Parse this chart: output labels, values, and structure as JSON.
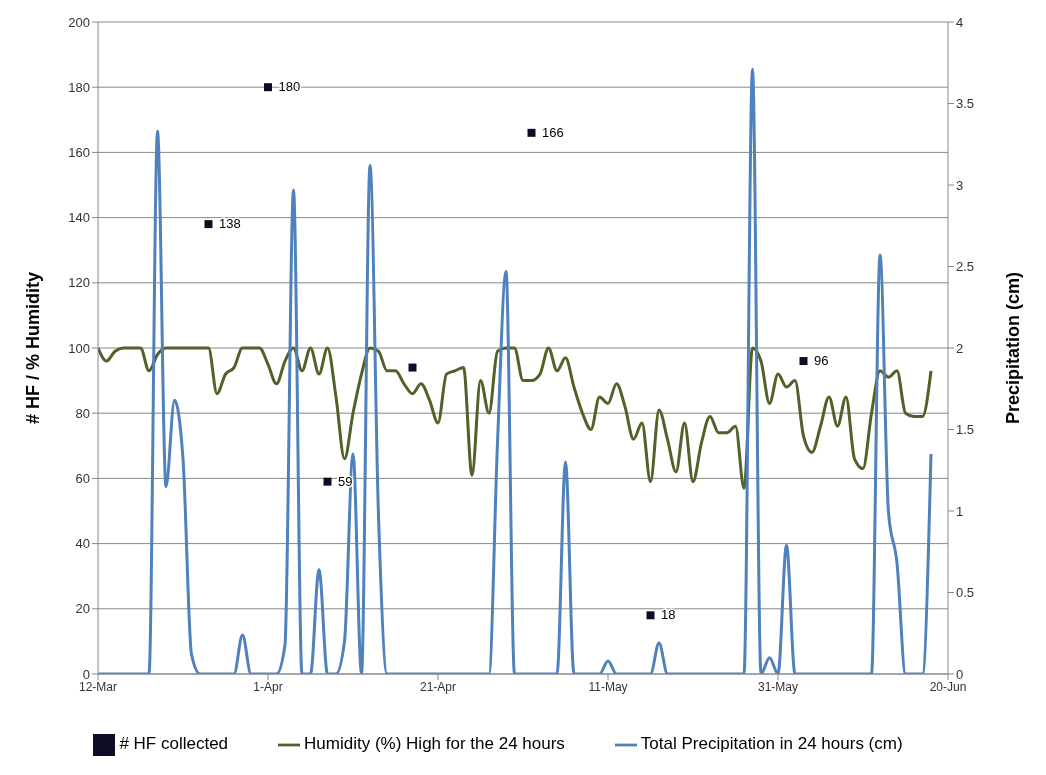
{
  "chart_data": {
    "type": "line",
    "x": [
      "--03-12",
      "--03-13",
      "--03-14",
      "--03-15",
      "--03-16",
      "--03-17",
      "--03-18",
      "--03-19",
      "--03-20",
      "--03-21",
      "--03-22",
      "--03-23",
      "--03-24",
      "--03-25",
      "--03-26",
      "--03-27",
      "--03-28",
      "--03-29",
      "--03-30",
      "--03-31",
      "--04-01",
      "--04-02",
      "--04-03",
      "--04-04",
      "--04-05",
      "--04-06",
      "--04-07",
      "--04-08",
      "--04-09",
      "--04-10",
      "--04-11",
      "--04-12",
      "--04-13",
      "--04-14",
      "--04-15",
      "--04-16",
      "--04-17",
      "--04-18",
      "--04-19",
      "--04-20",
      "--04-21",
      "--04-22",
      "--04-23",
      "--04-24",
      "--04-25",
      "--04-26",
      "--04-27",
      "--04-28",
      "--04-29",
      "--04-30",
      "--05-01",
      "--05-02",
      "--05-03",
      "--05-04",
      "--05-05",
      "--05-06",
      "--05-07",
      "--05-08",
      "--05-09",
      "--05-10",
      "--05-11",
      "--05-12",
      "--05-13",
      "--05-14",
      "--05-15",
      "--05-16",
      "--05-17",
      "--05-18",
      "--05-19",
      "--05-20",
      "--05-21",
      "--05-22",
      "--05-23",
      "--05-24",
      "--05-25",
      "--05-26",
      "--05-27",
      "--05-28",
      "--05-29",
      "--05-30",
      "--05-31",
      "--06-01",
      "--06-02",
      "--06-03",
      "--06-04",
      "--06-05",
      "--06-06",
      "--06-07",
      "--06-08",
      "--06-09",
      "--06-10",
      "--06-11",
      "--06-12",
      "--06-13",
      "--06-14",
      "--06-15",
      "--06-16",
      "--06-17",
      "--06-18"
    ],
    "series": [
      {
        "name": "# HF collected",
        "type": "scatter",
        "marker": "square",
        "color": "#0d0d26",
        "x": [
          "--03-25",
          "--04-01",
          "--04-08",
          "--04-18",
          "--05-02",
          "--05-16",
          "--06-03"
        ],
        "values": [
          138,
          180,
          59,
          94,
          166,
          18,
          96
        ],
        "value_labels": [
          "138",
          "180",
          "59",
          null,
          "166",
          "18",
          "96"
        ]
      },
      {
        "name": "Humidity (%) High for the 24 hours",
        "marker": "none",
        "color": "#4f6228",
        "values": [
          100,
          96,
          99,
          100,
          100,
          100,
          93,
          98,
          100,
          100,
          100,
          100,
          100,
          100,
          86,
          92,
          94,
          100,
          100,
          100,
          95,
          89,
          96,
          100,
          93,
          100,
          92,
          100,
          85,
          66,
          80,
          92,
          100,
          99,
          93,
          93,
          89,
          86,
          89,
          84,
          77,
          92,
          93,
          94,
          61,
          90,
          80,
          99,
          100,
          100,
          90,
          90,
          92,
          100,
          93,
          97,
          88,
          80,
          75,
          85,
          83,
          89,
          82,
          72,
          77,
          59,
          81,
          72,
          62,
          77,
          59,
          71,
          79,
          74,
          74,
          76,
          57,
          100,
          96,
          83,
          92,
          88,
          90,
          73,
          68,
          76,
          85,
          76,
          85,
          66,
          63,
          80,
          93,
          91,
          93,
          80,
          79,
          79,
          93
        ]
      },
      {
        "name": "Total Precipitation in 24 hours (cm)",
        "type": "line",
        "axis": "y2",
        "marker": "none",
        "color": "#4f81bd",
        "values": [
          0,
          0,
          0,
          0,
          0,
          0,
          0,
          3.33,
          1.15,
          1.68,
          1.32,
          0.12,
          0,
          0,
          0,
          0,
          0,
          0.24,
          0,
          0,
          0,
          0,
          0.18,
          2.97,
          0,
          0,
          0.64,
          0,
          0,
          0.2,
          1.35,
          0,
          3.12,
          0.97,
          0,
          0,
          0,
          0,
          0,
          0,
          0,
          0,
          0,
          0,
          0,
          0,
          0,
          1.42,
          2.47,
          0,
          0,
          0,
          0,
          0,
          0,
          1.3,
          0,
          0,
          0,
          0,
          0.08,
          0,
          0,
          0,
          0,
          0,
          0.19,
          0,
          0,
          0,
          0,
          0,
          0,
          0,
          0,
          0,
          0,
          3.71,
          0,
          0.1,
          0,
          0.79,
          0,
          0,
          0,
          0,
          0,
          0,
          0,
          0,
          0,
          0,
          2.57,
          0.99,
          0.68,
          0,
          0,
          0,
          1.35
        ]
      }
    ],
    "xlim": [
      "--03-12",
      "--06-20"
    ],
    "xticks": [
      {
        "value": "--03-12",
        "label": "12-Mar"
      },
      {
        "value": "--04-01",
        "label": "1-Apr"
      },
      {
        "value": "--04-21",
        "label": "21-Apr"
      },
      {
        "value": "--05-11",
        "label": "11-May"
      },
      {
        "value": "--05-31",
        "label": "31-May"
      },
      {
        "value": "--06-20",
        "label": "20-Jun"
      }
    ],
    "ylim": [
      0,
      200
    ],
    "yticks": [
      0,
      20,
      40,
      60,
      80,
      100,
      120,
      140,
      160,
      180,
      200
    ],
    "y2lim": [
      0,
      4
    ],
    "y2ticks": [
      0,
      0.5,
      1,
      1.5,
      2,
      2.5,
      3,
      3.5,
      4
    ],
    "ylabel": "# HF / % Humidity",
    "y2label": "Precipitation  (cm)",
    "grid": "y",
    "legend": "bottom"
  }
}
